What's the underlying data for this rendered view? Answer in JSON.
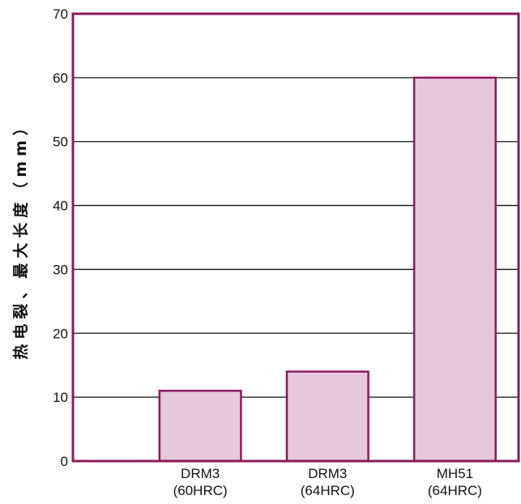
{
  "chart_data": {
    "type": "bar",
    "categories": [
      [
        "DRM3",
        "(60HRC)"
      ],
      [
        "DRM3",
        "(64HRC)"
      ],
      [
        "MH51",
        "(64HRC)"
      ]
    ],
    "values": [
      11,
      14,
      60
    ],
    "ylabel": "热电裂、最大长度（mm）",
    "ylim": [
      0,
      70
    ],
    "yticks": [
      0,
      10,
      20,
      30,
      40,
      50,
      60,
      70
    ],
    "grid": true,
    "colors": {
      "bar_fill": "#e8c8dc",
      "bar_stroke": "#8b1a5c",
      "frame": "#8b1a5c",
      "grid": "#111111"
    }
  }
}
